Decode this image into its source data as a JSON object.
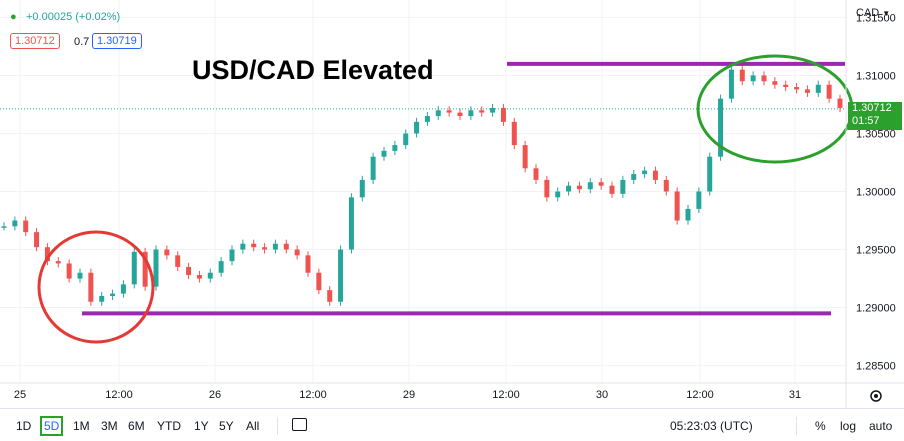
{
  "header": {
    "change": "+0.00025 (+0.02%)",
    "bid": "1.30712",
    "spread": "0.7",
    "ask": "1.30719",
    "currency": "CAD"
  },
  "annotation_title": "USD/CAD Elevated",
  "price_tag": {
    "price": "1.30712",
    "countdown": "01:57"
  },
  "bottom_bar": {
    "ranges": [
      "1D",
      "5D",
      "1M",
      "3M",
      "6M",
      "YTD",
      "1Y",
      "5Y",
      "All"
    ],
    "active_range": "5D",
    "time": "05:23:03 (UTC)",
    "percent": "%",
    "log": "log",
    "auto": "auto"
  },
  "colors": {
    "up": "#26a69a",
    "down": "#ef5350",
    "accent": "#2962ff",
    "purple": "#9c27b0",
    "red_circle": "#e53935",
    "green_circle": "#2ca02c"
  },
  "chart_data": {
    "type": "line",
    "series": [
      {
        "values": [
          1.297,
          1.2975,
          1.2965,
          1.2952,
          1.294,
          1.2938,
          1.2925,
          1.293,
          1.2905,
          1.291,
          1.2912,
          1.292,
          1.2948,
          1.2918,
          1.295,
          1.2945,
          1.2935,
          1.2928,
          1.2925,
          1.293,
          1.294,
          1.295,
          1.2955,
          1.2952,
          1.295,
          1.2955,
          1.295,
          1.2945,
          1.293,
          1.2915,
          1.2905,
          1.295,
          1.2995,
          1.301,
          1.303,
          1.3035,
          1.304,
          1.305,
          1.306,
          1.3065,
          1.307,
          1.3068,
          1.3065,
          1.307,
          1.3068,
          1.3072,
          1.306,
          1.304,
          1.302,
          1.301,
          1.2995,
          1.3,
          1.3005,
          1.3002,
          1.3008,
          1.3005,
          1.2998,
          1.301,
          1.3015,
          1.3018,
          1.301,
          1.3,
          1.2975,
          1.2985,
          1.3,
          1.303,
          1.308,
          1.3105,
          1.3095,
          1.31,
          1.3095,
          1.3092,
          1.309,
          1.3088,
          1.3085,
          1.3092,
          1.308,
          1.3072
        ]
      }
    ],
    "x_ticks": [
      "25",
      "12:00",
      "26",
      "12:00",
      "29",
      "12:00",
      "30",
      "12:00",
      "31"
    ],
    "y_ticks": [
      "1.31500",
      "1.31000",
      "1.30500",
      "1.30000",
      "1.29500",
      "1.29000",
      "1.28500"
    ],
    "ylim": [
      1.2835,
      1.3165
    ],
    "current_price": 1.30712,
    "resistance_level": 1.311,
    "support_level": 1.2895
  }
}
